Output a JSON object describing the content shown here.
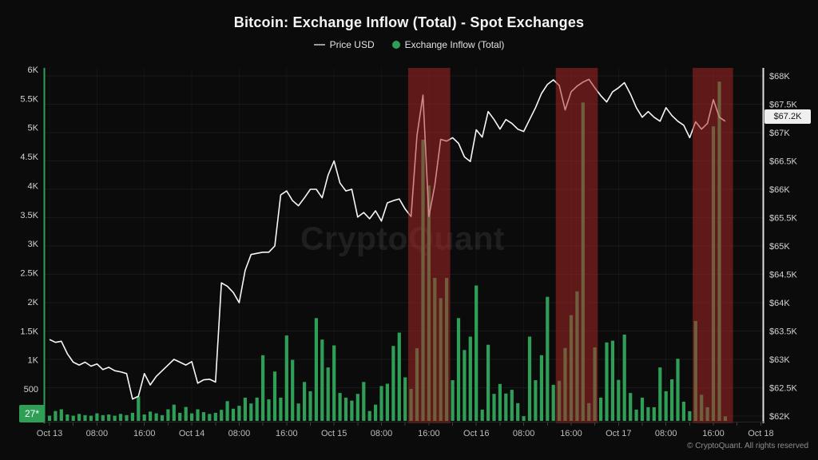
{
  "header": {
    "title": "Bitcoin: Exchange Inflow (Total) - Spot Exchanges"
  },
  "legend": {
    "price_label": "Price USD",
    "inflow_label": "Exchange Inflow (Total)"
  },
  "watermark": "CryptoQuant",
  "badges": {
    "last_inflow": "27*",
    "last_price": "$67.2K"
  },
  "footer": {
    "copyright": "© CryptoQuant. All rights reserved"
  },
  "colors": {
    "bar": "#2f9e57",
    "line": "#f7f7f7",
    "band": "rgba(172,38,38,0.52)",
    "left_axis": "#2f9e57",
    "right_axis": "#e0e0e0",
    "grid_h": "rgba(255,255,255,0.055)",
    "grid_v": "rgba(255,255,255,0.035)",
    "tick_label": "#d4d4d4",
    "x_label": "#bdbdbd"
  },
  "chart_data": {
    "type": "mixed",
    "title": "Bitcoin: Exchange Inflow (Total) - Spot Exchanges",
    "x_unit": "hours since Oct 13 00:00 (hourly points)",
    "legend_position": "top-center",
    "grid": "horizontal (price axis) + faint vertical at time ticks",
    "left_axis": {
      "label": "Exchange Inflow (Total)",
      "range": [
        0,
        6000
      ],
      "ticks": [
        {
          "v": 6000,
          "label": "6K"
        },
        {
          "v": 5500,
          "label": "5.5K"
        },
        {
          "v": 5000,
          "label": "5K"
        },
        {
          "v": 4500,
          "label": "4.5K"
        },
        {
          "v": 4000,
          "label": "4K"
        },
        {
          "v": 3500,
          "label": "3.5K"
        },
        {
          "v": 3000,
          "label": "3K"
        },
        {
          "v": 2500,
          "label": "2.5K"
        },
        {
          "v": 2000,
          "label": "2K"
        },
        {
          "v": 1500,
          "label": "1.5K"
        },
        {
          "v": 1000,
          "label": "1K"
        },
        {
          "v": 500,
          "label": "500"
        }
      ]
    },
    "right_axis": {
      "label": "Price USD (thousands)",
      "range": [
        62,
        68
      ],
      "ticks": [
        {
          "v": 68,
          "label": "$68K"
        },
        {
          "v": 67.5,
          "label": "$67.5K"
        },
        {
          "v": 67,
          "label": "$67K"
        },
        {
          "v": 66.5,
          "label": "$66.5K"
        },
        {
          "v": 66,
          "label": "$66K"
        },
        {
          "v": 65.5,
          "label": "$65.5K"
        },
        {
          "v": 65,
          "label": "$65K"
        },
        {
          "v": 64.5,
          "label": "$64.5K"
        },
        {
          "v": 64,
          "label": "$64K"
        },
        {
          "v": 63.5,
          "label": "$63.5K"
        },
        {
          "v": 63,
          "label": "$63K"
        },
        {
          "v": 62.5,
          "label": "$62.5K"
        },
        {
          "v": 62,
          "label": "$62K"
        }
      ]
    },
    "x_ticks": [
      {
        "h": 0,
        "label": "Oct 13"
      },
      {
        "h": 8,
        "label": "08:00"
      },
      {
        "h": 16,
        "label": "16:00"
      },
      {
        "h": 24,
        "label": "Oct 14"
      },
      {
        "h": 32,
        "label": "08:00"
      },
      {
        "h": 40,
        "label": "16:00"
      },
      {
        "h": 48,
        "label": "Oct 15"
      },
      {
        "h": 56,
        "label": "08:00"
      },
      {
        "h": 64,
        "label": "16:00"
      },
      {
        "h": 72,
        "label": "Oct 16"
      },
      {
        "h": 80,
        "label": "08:00"
      },
      {
        "h": 88,
        "label": "16:00"
      },
      {
        "h": 96,
        "label": "Oct 17"
      },
      {
        "h": 104,
        "label": "08:00"
      },
      {
        "h": 112,
        "label": "16:00"
      },
      {
        "h": 120,
        "label": "Oct 18"
      }
    ],
    "highlight_bands": [
      {
        "from_h": 60.5,
        "to_h": 67.6
      },
      {
        "from_h": 85.4,
        "to_h": 92.5
      },
      {
        "from_h": 108.5,
        "to_h": 115.3
      }
    ],
    "series": [
      {
        "name": "Price USD",
        "type": "line",
        "axis": "right",
        "last_value_label": "$67.2K",
        "values": [
          63.35,
          63.3,
          63.32,
          63.1,
          62.95,
          62.9,
          62.95,
          62.88,
          62.92,
          62.82,
          62.86,
          62.8,
          62.78,
          62.75,
          62.3,
          62.35,
          62.75,
          62.55,
          62.7,
          62.8,
          62.9,
          63.0,
          62.95,
          62.9,
          62.96,
          62.58,
          62.64,
          62.65,
          62.6,
          64.35,
          64.29,
          64.18,
          64.0,
          64.57,
          64.85,
          64.87,
          64.89,
          64.89,
          65.0,
          65.9,
          65.97,
          65.8,
          65.71,
          65.85,
          66.0,
          66.0,
          65.85,
          66.25,
          66.5,
          66.11,
          65.97,
          66.0,
          65.51,
          65.59,
          65.48,
          65.62,
          65.44,
          65.76,
          65.8,
          65.83,
          65.65,
          65.52,
          66.95,
          67.66,
          65.52,
          66.07,
          66.88,
          66.85,
          66.91,
          66.81,
          66.57,
          66.49,
          67.05,
          66.92,
          67.37,
          67.23,
          67.06,
          67.23,
          67.16,
          67.06,
          67.02,
          67.23,
          67.44,
          67.69,
          67.85,
          67.93,
          67.83,
          67.4,
          67.72,
          67.82,
          67.89,
          67.94,
          67.79,
          67.65,
          67.54,
          67.72,
          67.79,
          67.88,
          67.68,
          67.44,
          67.27,
          67.37,
          67.27,
          67.2,
          67.44,
          67.3,
          67.2,
          67.13,
          66.91,
          67.19,
          67.06,
          67.16,
          67.58,
          67.27,
          67.2
        ]
      },
      {
        "name": "Exchange Inflow (Total)",
        "type": "bar",
        "axis": "left",
        "last_value_label": "27*",
        "values": [
          40,
          120,
          150,
          60,
          40,
          70,
          50,
          40,
          80,
          50,
          60,
          40,
          70,
          50,
          90,
          370,
          60,
          110,
          80,
          50,
          150,
          230,
          90,
          190,
          80,
          150,
          100,
          70,
          90,
          140,
          290,
          160,
          210,
          350,
          250,
          350,
          1080,
          320,
          800,
          350,
          1420,
          1000,
          250,
          620,
          460,
          1720,
          1350,
          870,
          1250,
          430,
          350,
          300,
          415,
          620,
          120,
          230,
          550,
          590,
          1240,
          1470,
          700,
          500,
          1200,
          4790,
          4000,
          2410,
          2060,
          2410,
          650,
          1720,
          1170,
          1400,
          2280,
          145,
          1260,
          415,
          585,
          420,
          485,
          255,
          30,
          1400,
          650,
          1080,
          2085,
          570,
          640,
          1205,
          1770,
          2180,
          5430,
          255,
          1215,
          350,
          1300,
          1330,
          655,
          1435,
          430,
          145,
          350,
          185,
          185,
          870,
          460,
          665,
          1020,
          280,
          115,
          1670,
          400,
          185,
          5020,
          5790,
          27
        ]
      }
    ]
  }
}
